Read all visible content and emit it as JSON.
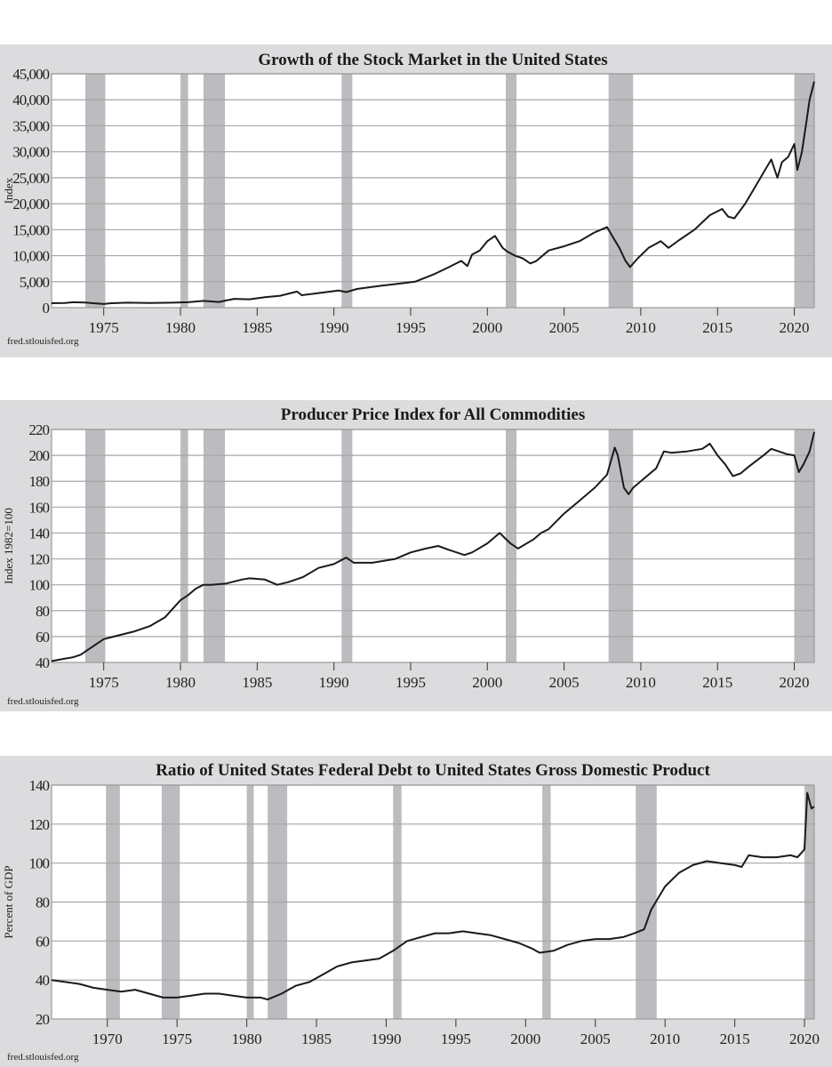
{
  "colors": {
    "panel_background": "#dcdcde",
    "plot_background": "#ffffff",
    "recession_shading": "#bcbcc0",
    "gridline": "#a6a6a6",
    "series_line": "#1a1a1a"
  },
  "chart_data": [
    {
      "type": "line",
      "title": "Growth of the Stock Market in the United States",
      "xlabel": "",
      "ylabel": "Index",
      "source": "fred.stlouisfed.org",
      "xlim": [
        1971.6,
        2021.3
      ],
      "ylim": [
        0,
        45000
      ],
      "x_ticks": [
        1975,
        1980,
        1985,
        1990,
        1995,
        2000,
        2005,
        2010,
        2015,
        2020
      ],
      "y_ticks": [
        0,
        5000,
        10000,
        15000,
        20000,
        25000,
        30000,
        35000,
        40000,
        45000
      ],
      "y_tick_labels": [
        "0",
        "5,000",
        "10,000",
        "15,000",
        "20,000",
        "25,000",
        "30,000",
        "35,000",
        "40,000",
        "45,000"
      ],
      "grid": true,
      "legend": "none",
      "recessions": [
        [
          1973.8,
          1975.1
        ],
        [
          1980.0,
          1980.5
        ],
        [
          1981.5,
          1982.9
        ],
        [
          1990.5,
          1991.2
        ],
        [
          2001.2,
          2001.9
        ],
        [
          2007.9,
          2009.5
        ],
        [
          2020.0,
          2021.3
        ]
      ],
      "series": [
        {
          "name": "Index",
          "x": [
            1971.6,
            1972.5,
            1973.0,
            1973.8,
            1974.5,
            1975.0,
            1975.5,
            1976.5,
            1978.0,
            1979.5,
            1980.5,
            1981.5,
            1982.5,
            1983.5,
            1984.5,
            1985.5,
            1986.5,
            1987.6,
            1987.9,
            1989.0,
            1990.3,
            1990.8,
            1991.5,
            1993.0,
            1994.5,
            1995.3,
            1996.5,
            1997.5,
            1998.3,
            1998.7,
            1999.0,
            1999.5,
            2000.0,
            2000.5,
            2001.0,
            2001.3,
            2001.8,
            2002.3,
            2002.8,
            2003.2,
            2004.0,
            2005.0,
            2006.0,
            2007.0,
            2007.8,
            2008.2,
            2008.6,
            2009.0,
            2009.3,
            2009.8,
            2010.5,
            2011.3,
            2011.8,
            2012.5,
            2013.5,
            2014.5,
            2015.3,
            2015.7,
            2016.1,
            2016.8,
            2017.5,
            2018.0,
            2018.5,
            2018.9,
            2019.2,
            2019.6,
            2020.0,
            2020.2,
            2020.5,
            2020.8,
            2021.0,
            2021.3
          ],
          "values": [
            850,
            900,
            1050,
            1000,
            800,
            700,
            850,
            950,
            900,
            950,
            1050,
            1300,
            1100,
            1700,
            1600,
            2000,
            2300,
            3100,
            2400,
            2800,
            3300,
            3000,
            3600,
            4200,
            4700,
            5000,
            6400,
            7800,
            9000,
            8000,
            10200,
            11000,
            12800,
            13800,
            11500,
            10800,
            10000,
            9500,
            8500,
            9000,
            11000,
            11800,
            12800,
            14500,
            15500,
            13500,
            11500,
            9000,
            7800,
            9500,
            11500,
            12800,
            11500,
            13000,
            15000,
            17800,
            19000,
            17500,
            17200,
            20000,
            23500,
            26000,
            28500,
            25000,
            28000,
            29000,
            31500,
            26500,
            30000,
            36000,
            40000,
            43500
          ]
        }
      ]
    },
    {
      "type": "line",
      "title": "Producer Price Index for All Commodities",
      "xlabel": "",
      "ylabel": "Index 1982=100",
      "source": "fred.stlouisfed.org",
      "xlim": [
        1971.6,
        2021.3
      ],
      "ylim": [
        40,
        220
      ],
      "x_ticks": [
        1975,
        1980,
        1985,
        1990,
        1995,
        2000,
        2005,
        2010,
        2015,
        2020
      ],
      "y_ticks": [
        40,
        60,
        80,
        100,
        120,
        140,
        160,
        180,
        200,
        220
      ],
      "y_tick_labels": [
        "40",
        "60",
        "80",
        "100",
        "120",
        "140",
        "160",
        "180",
        "200",
        "220"
      ],
      "grid": true,
      "legend": "none",
      "recessions": [
        [
          1973.8,
          1975.1
        ],
        [
          1980.0,
          1980.5
        ],
        [
          1981.5,
          1982.9
        ],
        [
          1990.5,
          1991.2
        ],
        [
          2001.2,
          2001.9
        ],
        [
          2007.9,
          2009.5
        ],
        [
          2020.0,
          2021.3
        ]
      ],
      "series": [
        {
          "name": "PPI",
          "x": [
            1971.6,
            1972.5,
            1973.0,
            1973.5,
            1974.0,
            1974.5,
            1975.0,
            1976.0,
            1977.0,
            1978.0,
            1979.0,
            1980.0,
            1980.5,
            1981.0,
            1981.5,
            1982.0,
            1983.0,
            1984.0,
            1984.5,
            1985.5,
            1986.3,
            1987.0,
            1988.0,
            1989.0,
            1990.0,
            1990.8,
            1991.3,
            1992.5,
            1994.0,
            1995.0,
            1996.0,
            1996.8,
            1997.5,
            1998.5,
            1999.0,
            2000.0,
            2000.8,
            2001.5,
            2002.0,
            2003.0,
            2003.5,
            2004.0,
            2005.0,
            2006.0,
            2007.0,
            2007.8,
            2008.3,
            2008.5,
            2008.9,
            2009.2,
            2009.5,
            2010.0,
            2010.5,
            2011.0,
            2011.5,
            2012.0,
            2013.0,
            2014.0,
            2014.5,
            2015.0,
            2015.5,
            2016.0,
            2016.5,
            2017.0,
            2018.0,
            2018.5,
            2019.0,
            2019.5,
            2020.0,
            2020.3,
            2020.6,
            2021.0,
            2021.3
          ],
          "values": [
            41,
            43,
            44,
            46,
            50,
            54,
            58,
            61,
            64,
            68,
            75,
            88,
            92,
            97,
            100,
            100,
            101,
            104,
            105,
            104,
            100,
            102,
            106,
            113,
            116,
            121,
            117,
            117,
            120,
            125,
            128,
            130,
            127,
            123,
            125,
            132,
            140,
            132,
            128,
            135,
            140,
            143,
            155,
            165,
            175,
            185,
            206,
            200,
            175,
            170,
            175,
            180,
            185,
            190,
            203,
            202,
            203,
            205,
            209,
            200,
            193,
            184,
            186,
            191,
            200,
            205,
            203,
            201,
            200,
            187,
            193,
            203,
            218
          ]
        }
      ]
    },
    {
      "type": "line",
      "title": "Ratio of United States Federal Debt to United States Gross Domestic Product",
      "xlabel": "",
      "ylabel": "Percent of GDP",
      "source": "fred.stlouisfed.org",
      "xlim": [
        1966.0,
        2020.7
      ],
      "ylim": [
        20,
        140
      ],
      "x_ticks": [
        1970,
        1975,
        1980,
        1985,
        1990,
        1995,
        2000,
        2005,
        2010,
        2015,
        2020
      ],
      "y_ticks": [
        20,
        40,
        60,
        80,
        100,
        120,
        140
      ],
      "y_tick_labels": [
        "20",
        "40",
        "60",
        "80",
        "100",
        "120",
        "140"
      ],
      "grid": true,
      "legend": "none",
      "recessions": [
        [
          1969.9,
          1970.9
        ],
        [
          1973.9,
          1975.2
        ],
        [
          1980.0,
          1980.5
        ],
        [
          1981.5,
          1982.9
        ],
        [
          1990.5,
          1991.1
        ],
        [
          2001.2,
          2001.8
        ],
        [
          2007.9,
          2009.4
        ],
        [
          2020.0,
          2020.7
        ]
      ],
      "series": [
        {
          "name": "Debt/GDP",
          "x": [
            1966.0,
            1967.0,
            1968.0,
            1969.0,
            1970.0,
            1971.0,
            1972.0,
            1973.0,
            1974.0,
            1975.0,
            1976.0,
            1977.0,
            1978.0,
            1979.0,
            1980.0,
            1981.0,
            1981.5,
            1982.5,
            1983.5,
            1984.5,
            1985.5,
            1986.5,
            1987.5,
            1988.5,
            1989.5,
            1990.5,
            1991.5,
            1992.5,
            1993.5,
            1994.5,
            1995.5,
            1996.5,
            1997.5,
            1998.5,
            1999.5,
            2000.5,
            2001.0,
            2002.0,
            2003.0,
            2004.0,
            2005.0,
            2006.0,
            2007.0,
            2007.8,
            2008.5,
            2009.0,
            2009.5,
            2010.0,
            2011.0,
            2012.0,
            2013.0,
            2014.0,
            2015.0,
            2015.5,
            2016.0,
            2017.0,
            2018.0,
            2019.0,
            2019.5,
            2020.0,
            2020.2,
            2020.5,
            2020.7
          ],
          "values": [
            40,
            39,
            38,
            36,
            35,
            34,
            35,
            33,
            31,
            31,
            32,
            33,
            33,
            32,
            31,
            31,
            30,
            33,
            37,
            39,
            43,
            47,
            49,
            50,
            51,
            55,
            60,
            62,
            64,
            64,
            65,
            64,
            63,
            61,
            59,
            56,
            54,
            55,
            58,
            60,
            61,
            61,
            62,
            64,
            66,
            76,
            82,
            88,
            95,
            99,
            101,
            100,
            99,
            98,
            104,
            103,
            103,
            104,
            103,
            107,
            136,
            128,
            129
          ]
        }
      ]
    }
  ]
}
